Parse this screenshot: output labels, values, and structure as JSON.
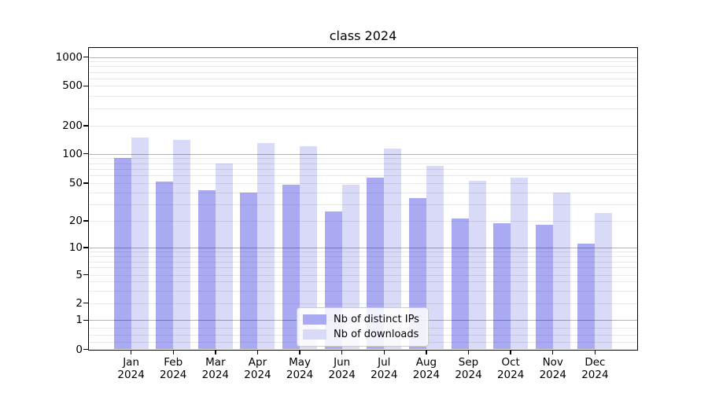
{
  "chart_data": {
    "type": "bar",
    "title": "class 2024",
    "yscale": "symlog",
    "grid": true,
    "legend_position": "lower center",
    "y_ticks": [
      0,
      1,
      2,
      5,
      10,
      20,
      50,
      100,
      200,
      500,
      1000
    ],
    "ylim": [
      0,
      1250
    ],
    "categories": [
      {
        "month": "Jan",
        "year": "2024"
      },
      {
        "month": "Feb",
        "year": "2024"
      },
      {
        "month": "Mar",
        "year": "2024"
      },
      {
        "month": "Apr",
        "year": "2024"
      },
      {
        "month": "May",
        "year": "2024"
      },
      {
        "month": "Jun",
        "year": "2024"
      },
      {
        "month": "Jul",
        "year": "2024"
      },
      {
        "month": "Aug",
        "year": "2024"
      },
      {
        "month": "Sep",
        "year": "2024"
      },
      {
        "month": "Oct",
        "year": "2024"
      },
      {
        "month": "Nov",
        "year": "2024"
      },
      {
        "month": "Dec",
        "year": "2024"
      }
    ],
    "series": [
      {
        "name": "Nb of distinct IPs",
        "color": "#aaaaf2",
        "values": [
          90,
          52,
          42,
          40,
          48,
          25,
          57,
          35,
          21,
          19,
          18,
          11
        ]
      },
      {
        "name": "Nb of downloads",
        "color": "#d9d9f8",
        "values": [
          150,
          140,
          80,
          130,
          120,
          48,
          115,
          75,
          53,
          57,
          40,
          24
        ]
      }
    ],
    "colors": {
      "distinct_ips": "#aaaaf2",
      "downloads": "#d9d9f8",
      "major_grid": "#b3b3b3",
      "minor_grid": "#e8e8e8",
      "spine": "#000000"
    }
  }
}
